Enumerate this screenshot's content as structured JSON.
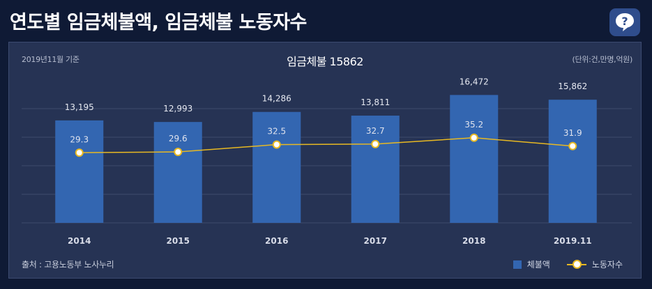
{
  "header": {
    "title": "연도별 임금체불액, 임금체불 노동자수",
    "help_icon": "question-bubble-icon"
  },
  "panel": {
    "base_date": "2019년11월 기준",
    "chart_title": "임금체불 15862",
    "unit": "(단위:건,만명,억원)",
    "source": "출처 : 고용노동부 노사누리",
    "legend_bar": "체불액",
    "legend_line": "노동자수"
  },
  "colors": {
    "bar": "#3366b1",
    "line": "#e8b922",
    "marker_fill": "#ffffff",
    "grid": "#3e4b6c"
  },
  "chart_data": {
    "type": "bar",
    "categories": [
      "2014",
      "2015",
      "2016",
      "2017",
      "2018",
      "2019.11"
    ],
    "series": [
      {
        "name": "체불액",
        "type": "bar",
        "values": [
          13195,
          12993,
          14286,
          13811,
          16472,
          15862
        ],
        "labels": [
          "13,195",
          "12,993",
          "14,286",
          "13,811",
          "16,472",
          "15,862"
        ]
      },
      {
        "name": "노동자수",
        "type": "line",
        "values": [
          29.3,
          29.6,
          32.5,
          32.7,
          35.2,
          31.9
        ],
        "labels": [
          "29.3",
          "29.6",
          "32.5",
          "32.7",
          "35.2",
          "31.9"
        ]
      }
    ],
    "title": "임금체불 15862",
    "legend": "bottom-right",
    "grid": true
  }
}
